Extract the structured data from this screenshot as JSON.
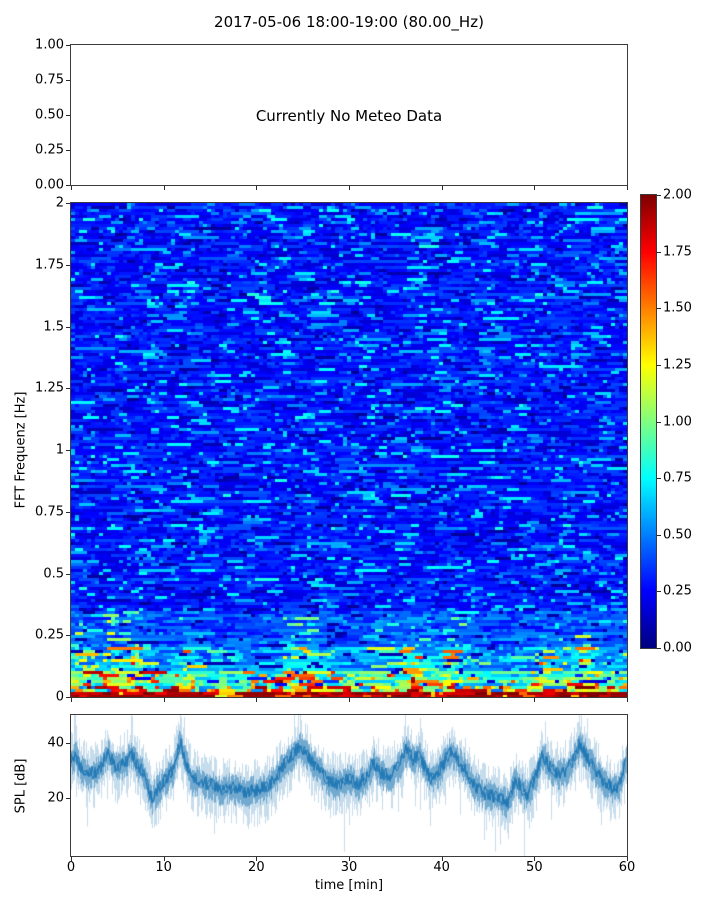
{
  "title": "2017-05-06 18:00-19:00 (80.00_Hz)",
  "chart_data": [
    {
      "type": "empty",
      "panel": "meteo",
      "annotation": "Currently No Meteo Data",
      "ylim": [
        0.0,
        1.0
      ],
      "ytick_labels": [
        "1.00",
        "0.75",
        "0.50",
        "0.25",
        "0.00"
      ],
      "xlim": [
        0,
        60
      ],
      "xticks": [
        0,
        10,
        20,
        30,
        40,
        50,
        60
      ],
      "grid": false
    },
    {
      "type": "heatmap",
      "panel": "spectrogram",
      "ylabel": "FFT Frequenz [Hz]",
      "ylim": [
        0,
        2
      ],
      "xlim": [
        0,
        60
      ],
      "ytick_labels": [
        "2",
        "1.75",
        "1.5",
        "1.25",
        "1",
        "0.75",
        "0.5",
        "0.25",
        "0"
      ],
      "xticks": [
        0,
        10,
        20,
        30,
        40,
        50,
        60
      ],
      "colormap": "jet",
      "clim": [
        0.0,
        2.0
      ],
      "colorbar_tick_labels": [
        "2.00",
        "1.75",
        "1.50",
        "1.25",
        "1.00",
        "0.75",
        "0.50",
        "0.25",
        "0.00"
      ],
      "description": "Broadband blue noise field (levels ~0.1-0.7) with thin horizontal cyan streaks over the full band; energy increases below 0.35 Hz with cyan/green bursts, strong yellow/orange/red bursts (1-2) below 0.15 Hz during active periods, and a nearly continuous dark-red band at 0 Hz.",
      "bands": [
        {
          "freq_range": [
            0.35,
            2.0
          ],
          "level_range": [
            0.1,
            0.7
          ],
          "appearance": "blue with sparse cyan streaks"
        },
        {
          "freq_range": [
            0.2,
            0.35
          ],
          "level_range": [
            0.2,
            1.2
          ],
          "appearance": "cyan/green streaks during active minutes"
        },
        {
          "freq_range": [
            0.1,
            0.2
          ],
          "level_range": [
            0.3,
            1.7
          ],
          "appearance": "green/yellow bursts"
        },
        {
          "freq_range": [
            0.045,
            0.1
          ],
          "level_range": [
            0.45,
            2.0
          ],
          "appearance": "yellow/orange/red bursts"
        },
        {
          "freq_range": [
            0.0,
            0.045
          ],
          "level_range": [
            1.1,
            2.0
          ],
          "appearance": "near-continuous dark red baseline"
        }
      ],
      "active_minutes": [
        [
          0,
          8
        ],
        [
          10.5,
          13
        ],
        [
          22,
          27
        ],
        [
          33,
          43
        ],
        [
          50,
          60
        ]
      ]
    },
    {
      "type": "line",
      "panel": "spl",
      "ylabel": "SPL [dB]",
      "xlabel": "time [min]",
      "xlim": [
        0,
        60
      ],
      "ylim_approx": [
        -1,
        50
      ],
      "ytick_values": [
        40,
        20
      ],
      "ytick_labels": [
        "40",
        "20"
      ],
      "xticks": [
        0,
        10,
        20,
        30,
        40,
        50,
        60
      ],
      "xtick_labels": [
        "0",
        "10",
        "20",
        "30",
        "40",
        "50",
        "60"
      ],
      "line_color": "#1f77b4",
      "noise_band_db": 4,
      "envelope_t_min": [
        0,
        0.5,
        1,
        2,
        3,
        4,
        4.5,
        5,
        6,
        6.5,
        7,
        8,
        8.7,
        9.5,
        10,
        11,
        11.8,
        12.3,
        13,
        14,
        15,
        16,
        17,
        18,
        19,
        20,
        21,
        22,
        23,
        24,
        24.7,
        25.3,
        26,
        27,
        28,
        29,
        30,
        31,
        32,
        32.7,
        33.5,
        34.5,
        35.5,
        36.3,
        37,
        37.6,
        38.5,
        39,
        40,
        41,
        41.6,
        42.5,
        43.5,
        44.5,
        45.5,
        46.5,
        47.2,
        48,
        48.6,
        49.3,
        50,
        51,
        51.6,
        52.5,
        53.5,
        54.3,
        55,
        55.6,
        56.5,
        57.5,
        58.5,
        59.2,
        60
      ],
      "envelope_spl_db": [
        34,
        36,
        31,
        29,
        30,
        37,
        33,
        31,
        33,
        37,
        33,
        28,
        20,
        24,
        26,
        30,
        41,
        34,
        27,
        26,
        25,
        23,
        24,
        23,
        22,
        23,
        24,
        27,
        32,
        36,
        39,
        37,
        33,
        29,
        26,
        25,
        27,
        25,
        28,
        33,
        29,
        28,
        32,
        38,
        34,
        36,
        29,
        27,
        31,
        37,
        35,
        31,
        25,
        22,
        21,
        20,
        18,
        27,
        24,
        21,
        26,
        36,
        32,
        29,
        30,
        34,
        40,
        36,
        31,
        26,
        24,
        24,
        33
      ]
    }
  ]
}
